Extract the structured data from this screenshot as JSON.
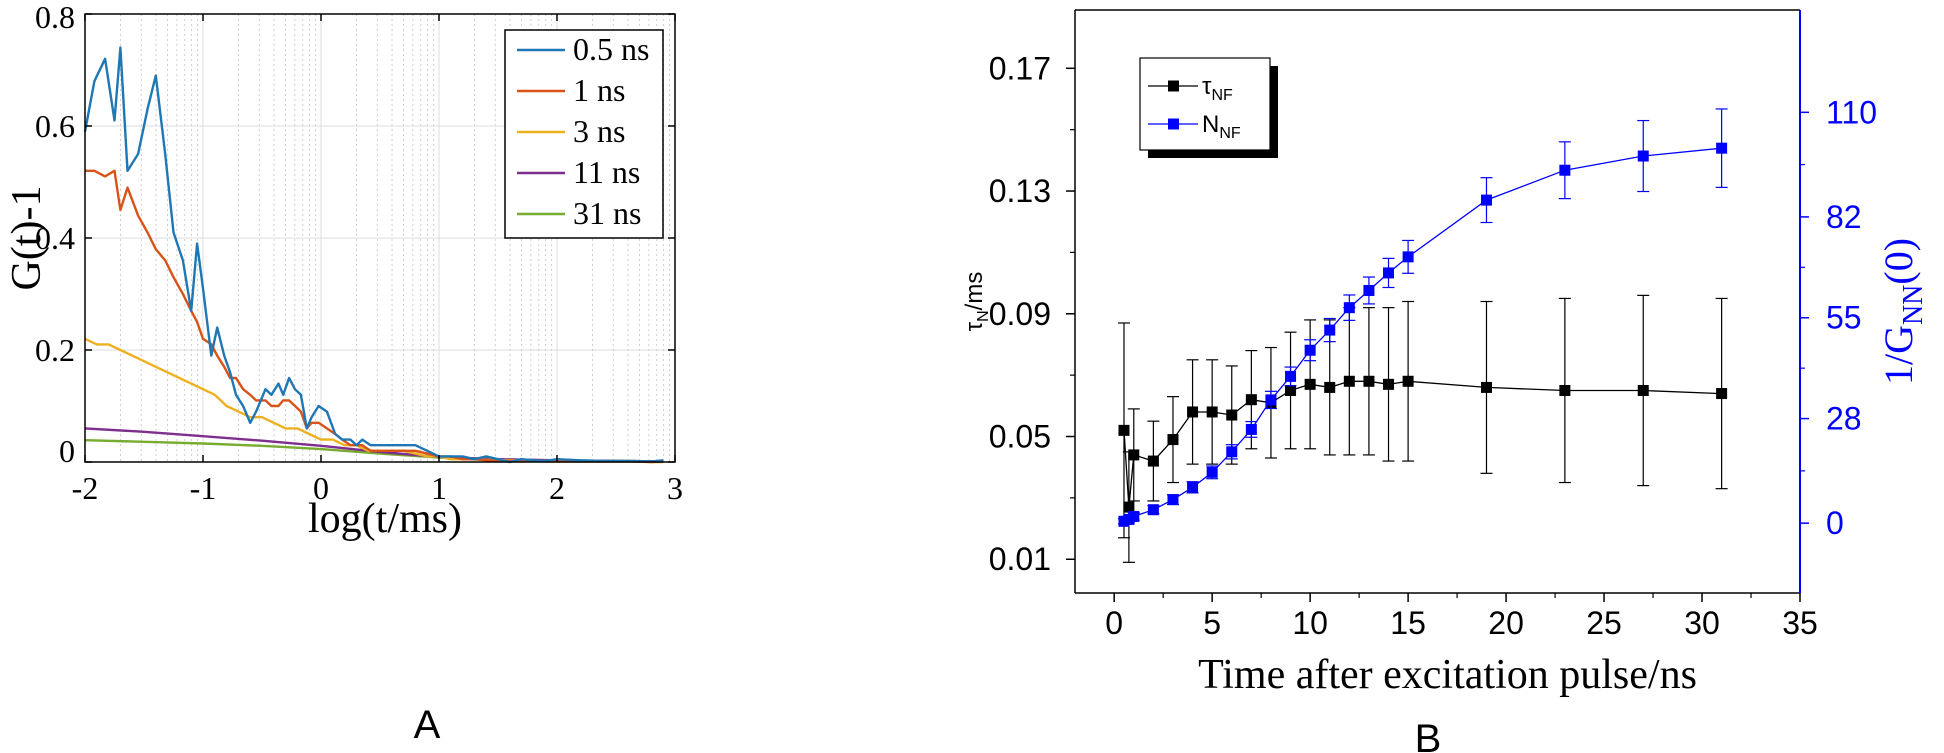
{
  "chart_data": [
    {
      "type": "line",
      "panel_label": "A",
      "xlabel": "log(t/ms)",
      "ylabel": "G(t)-1",
      "xlim": [
        -2,
        3
      ],
      "ylim": [
        0,
        0.8
      ],
      "xticks": [
        -2,
        -1,
        0,
        1,
        2,
        3
      ],
      "yticks": [
        0,
        0.2,
        0.4,
        0.6,
        0.8
      ],
      "grid": true,
      "legend_position": "top-right",
      "series": [
        {
          "name": "0.5 ns",
          "color": "#1f77b4",
          "x": [
            -2.0,
            -1.92,
            -1.83,
            -1.75,
            -1.7,
            -1.64,
            -1.55,
            -1.47,
            -1.4,
            -1.32,
            -1.25,
            -1.17,
            -1.1,
            -1.05,
            -1.0,
            -0.93,
            -0.88,
            -0.82,
            -0.77,
            -0.72,
            -0.66,
            -0.6,
            -0.55,
            -0.47,
            -0.42,
            -0.36,
            -0.32,
            -0.27,
            -0.22,
            -0.17,
            -0.12,
            -0.08,
            -0.02,
            0.05,
            0.12,
            0.18,
            0.25,
            0.3,
            0.35,
            0.42,
            0.5,
            0.6,
            0.7,
            0.8,
            0.9,
            1.0,
            1.1,
            1.2,
            1.3,
            1.4,
            1.5,
            1.6,
            1.7,
            1.8,
            1.9,
            2.0,
            2.2,
            2.4,
            2.6,
            2.8,
            2.9
          ],
          "y": [
            0.59,
            0.68,
            0.72,
            0.61,
            0.74,
            0.52,
            0.55,
            0.63,
            0.69,
            0.55,
            0.41,
            0.36,
            0.27,
            0.39,
            0.31,
            0.19,
            0.24,
            0.19,
            0.16,
            0.12,
            0.1,
            0.07,
            0.09,
            0.13,
            0.12,
            0.14,
            0.12,
            0.15,
            0.13,
            0.12,
            0.06,
            0.08,
            0.1,
            0.09,
            0.05,
            0.04,
            0.04,
            0.03,
            0.04,
            0.03,
            0.03,
            0.03,
            0.03,
            0.03,
            0.02,
            0.01,
            0.01,
            0.01,
            0.005,
            0.01,
            0.005,
            0.0,
            0.005,
            0.003,
            0.002,
            0.005,
            0.003,
            0.002,
            0.002,
            0.001,
            0.003
          ]
        },
        {
          "name": "1 ns",
          "color": "#d95319",
          "x": [
            -2.0,
            -1.92,
            -1.83,
            -1.75,
            -1.7,
            -1.64,
            -1.55,
            -1.47,
            -1.4,
            -1.32,
            -1.25,
            -1.17,
            -1.1,
            -1.05,
            -1.0,
            -0.93,
            -0.88,
            -0.82,
            -0.77,
            -0.72,
            -0.66,
            -0.6,
            -0.55,
            -0.47,
            -0.42,
            -0.36,
            -0.32,
            -0.27,
            -0.22,
            -0.17,
            -0.12,
            -0.08,
            -0.02,
            0.05,
            0.12,
            0.18,
            0.25,
            0.3,
            0.35,
            0.42,
            0.5,
            0.6,
            0.7,
            0.8,
            0.9,
            1.0,
            1.1,
            1.2,
            1.3,
            1.4,
            1.5,
            1.6,
            1.7,
            1.8,
            1.9,
            2.0,
            2.2,
            2.4,
            2.6,
            2.8,
            2.9
          ],
          "y": [
            0.52,
            0.52,
            0.51,
            0.52,
            0.45,
            0.49,
            0.44,
            0.41,
            0.38,
            0.36,
            0.33,
            0.3,
            0.27,
            0.25,
            0.22,
            0.21,
            0.19,
            0.17,
            0.15,
            0.15,
            0.13,
            0.12,
            0.11,
            0.11,
            0.1,
            0.1,
            0.11,
            0.11,
            0.1,
            0.09,
            0.06,
            0.07,
            0.07,
            0.06,
            0.05,
            0.04,
            0.03,
            0.03,
            0.03,
            0.02,
            0.02,
            0.02,
            0.02,
            0.02,
            0.015,
            0.01,
            0.01,
            0.005,
            0.005,
            0.003,
            0.003,
            0.002,
            0.002,
            0.002,
            0.001,
            0.001,
            0.001,
            0.001,
            0.001,
            0.0,
            0.001
          ]
        },
        {
          "name": "3 ns",
          "color": "#edb120",
          "x": [
            -2.0,
            -1.9,
            -1.8,
            -1.7,
            -1.6,
            -1.5,
            -1.4,
            -1.3,
            -1.2,
            -1.1,
            -1.0,
            -0.9,
            -0.8,
            -0.7,
            -0.6,
            -0.5,
            -0.4,
            -0.3,
            -0.2,
            -0.1,
            0.0,
            0.1,
            0.2,
            0.3,
            0.4,
            0.5,
            0.6,
            0.7,
            0.8,
            0.9,
            1.0,
            1.1,
            1.2,
            1.4,
            1.6,
            1.8,
            2.0,
            2.2,
            2.4,
            2.6,
            2.8,
            2.9
          ],
          "y": [
            0.22,
            0.21,
            0.21,
            0.2,
            0.19,
            0.18,
            0.17,
            0.16,
            0.15,
            0.14,
            0.13,
            0.12,
            0.1,
            0.09,
            0.08,
            0.08,
            0.07,
            0.06,
            0.06,
            0.05,
            0.04,
            0.04,
            0.03,
            0.03,
            0.02,
            0.02,
            0.02,
            0.02,
            0.015,
            0.01,
            0.01,
            0.005,
            0.005,
            0.004,
            0.003,
            0.002,
            0.002,
            0.001,
            0.001,
            0.001,
            0.0,
            0.0
          ]
        },
        {
          "name": "11 ns",
          "color": "#7e2f8e",
          "x": [
            -2.0,
            -1.5,
            -1.0,
            -0.5,
            0.0,
            0.5,
            1.0,
            1.5,
            2.0,
            2.5,
            2.9
          ],
          "y": [
            0.06,
            0.054,
            0.046,
            0.038,
            0.029,
            0.018,
            0.009,
            0.005,
            0.003,
            0.002,
            0.001
          ]
        },
        {
          "name": "31 ns",
          "color": "#77ac30",
          "x": [
            -2.0,
            -1.5,
            -1.0,
            -0.5,
            0.0,
            0.5,
            1.0,
            1.5,
            2.0,
            2.5,
            2.9
          ],
          "y": [
            0.039,
            0.036,
            0.033,
            0.029,
            0.023,
            0.015,
            0.008,
            0.004,
            0.003,
            0.002,
            0.001
          ]
        }
      ]
    },
    {
      "type": "scatter",
      "panel_label": "B",
      "xlabel": "Time after excitation pulse/ns",
      "ylabel": "τ",
      "ylabel_sub": "N",
      "ylabel_suffix": "/ms",
      "y2label": "1/G",
      "y2label_sub": "NN",
      "y2label_suffix": "(0)",
      "xlim": [
        -2,
        35
      ],
      "ylim": [
        -0.001,
        0.189
      ],
      "y2lim": [
        -18.7,
        137.4
      ],
      "xticks": [
        0,
        5,
        10,
        15,
        20,
        25,
        30,
        35
      ],
      "yticks": [
        0.01,
        0.05,
        0.09,
        0.13,
        0.17
      ],
      "yticks_labels": [
        "0.01",
        "0.05",
        "0.09",
        "0.13",
        "0.17"
      ],
      "y2ticks": [
        0,
        28,
        55,
        82,
        110
      ],
      "grid": false,
      "legend_position": "top-left",
      "series": [
        {
          "name": "τ",
          "name_sub": "NF",
          "color": "#000000",
          "axis": "left",
          "x": [
            0.5,
            0.75,
            1.0,
            2.0,
            3.0,
            4.0,
            5.0,
            6.0,
            7.0,
            8.0,
            9.0,
            10.0,
            11.0,
            12.0,
            13.0,
            14.0,
            15.0,
            19.0,
            23.0,
            27.0,
            31.0
          ],
          "y": [
            0.052,
            0.027,
            0.044,
            0.042,
            0.049,
            0.058,
            0.058,
            0.057,
            0.062,
            0.061,
            0.065,
            0.067,
            0.066,
            0.068,
            0.068,
            0.067,
            0.068,
            0.066,
            0.065,
            0.065,
            0.064
          ],
          "err": [
            0.035,
            0.018,
            0.015,
            0.013,
            0.014,
            0.017,
            0.017,
            0.016,
            0.016,
            0.018,
            0.019,
            0.021,
            0.022,
            0.024,
            0.024,
            0.025,
            0.026,
            0.028,
            0.03,
            0.031,
            0.031
          ]
        },
        {
          "name": "N",
          "name_sub": "NF",
          "color": "#0000ff",
          "axis": "right",
          "x": [
            0.5,
            0.75,
            1.0,
            2.0,
            3.0,
            4.0,
            5.0,
            6.0,
            7.0,
            8.0,
            9.0,
            10.0,
            11.0,
            12.0,
            13.0,
            14.0,
            15.0,
            19.0,
            23.0,
            27.0,
            31.0
          ],
          "y": [
            0.5,
            1.0,
            1.8,
            3.6,
            6.3,
            9.6,
            13.6,
            19.1,
            25.1,
            33.0,
            39.3,
            46.3,
            51.7,
            57.7,
            62.3,
            67.0,
            71.3,
            86.5,
            94.5,
            98.3,
            100.4
          ],
          "err": [
            0.7,
            0.9,
            1.0,
            1.1,
            1.3,
            1.5,
            1.7,
            1.9,
            2.1,
            2.3,
            2.5,
            2.8,
            3.1,
            3.4,
            3.6,
            3.9,
            4.4,
            6.0,
            7.6,
            9.5,
            10.5
          ]
        }
      ]
    }
  ]
}
